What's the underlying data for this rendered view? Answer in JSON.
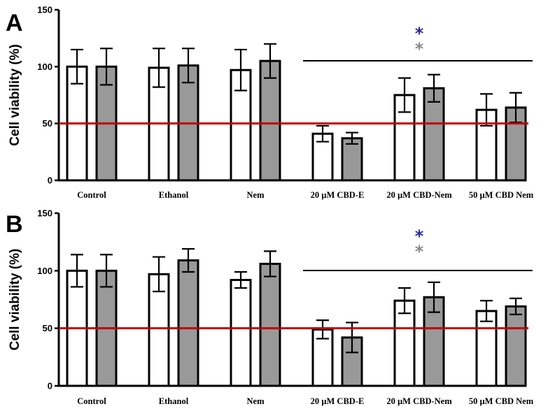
{
  "chart_data": [
    {
      "type": "bar",
      "panel": "A",
      "ylabel": "Cell viability (%)",
      "ylim": [
        0,
        150
      ],
      "yticks": [
        "0",
        "50",
        "100",
        "150"
      ],
      "categories": [
        "Control",
        "Ethanol",
        "Nem",
        "20 µM CBD-E",
        "20 µM CBD-Nem",
        "50 µM CBD Nem"
      ],
      "series": [
        {
          "color": "#ffffff",
          "values": [
            100,
            99,
            97,
            41,
            75,
            62
          ],
          "errors": [
            15,
            17,
            18,
            7,
            15,
            14
          ]
        },
        {
          "color": "#999999",
          "values": [
            100,
            101,
            105,
            37,
            81,
            64
          ],
          "errors": [
            16,
            15,
            15,
            5,
            12,
            13
          ]
        }
      ],
      "reference_line": {
        "value": 50,
        "color": "#c00000"
      },
      "significance_bar": {
        "from_category": 3,
        "to_category": 5,
        "y": 105
      },
      "significance_markers": [
        {
          "text": "*",
          "color": "#2a2aa8"
        },
        {
          "text": "*",
          "color": "#8a8a8a"
        }
      ]
    },
    {
      "type": "bar",
      "panel": "B",
      "ylabel": "Cell viability (%)",
      "ylim": [
        0,
        150
      ],
      "yticks": [
        "0",
        "50",
        "100",
        "150"
      ],
      "categories": [
        "Control",
        "Ethanol",
        "Nem",
        "20 µM CBD-E",
        "20 µM CBD-Nem",
        "50 µM CBD Nem"
      ],
      "series": [
        {
          "color": "#ffffff",
          "values": [
            100,
            97,
            92,
            49,
            74,
            65
          ],
          "errors": [
            14,
            15,
            7,
            8,
            11,
            9
          ]
        },
        {
          "color": "#999999",
          "values": [
            100,
            109,
            106,
            42,
            77,
            69
          ],
          "errors": [
            14,
            10,
            11,
            13,
            13,
            7
          ]
        }
      ],
      "reference_line": {
        "value": 50,
        "color": "#c00000"
      },
      "significance_bar": {
        "from_category": 3,
        "to_category": 5,
        "y": 100
      },
      "significance_markers": [
        {
          "text": "*",
          "color": "#2a2aa8"
        },
        {
          "text": "*",
          "color": "#8a8a8a"
        }
      ]
    }
  ]
}
